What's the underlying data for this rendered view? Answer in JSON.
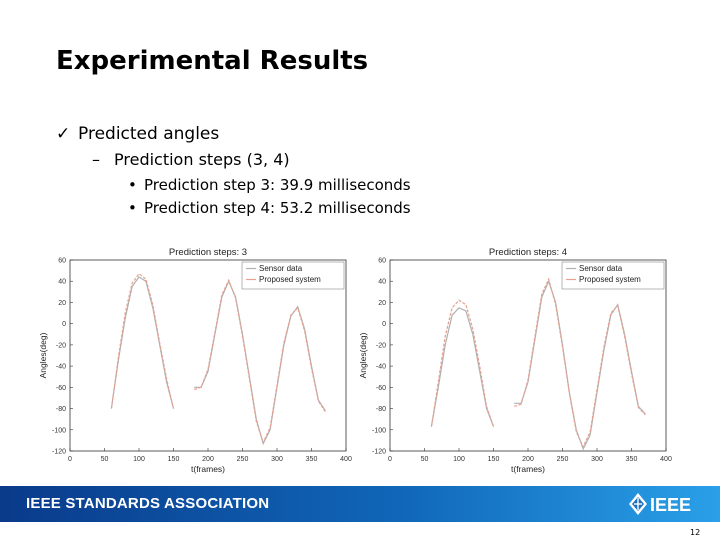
{
  "slide": {
    "title": "Experimental Results",
    "bullet1": {
      "mark": "✓",
      "text": "Predicted angles"
    },
    "bullet2": {
      "mark": "–",
      "text": "Prediction steps (3, 4)"
    },
    "bullet3": [
      {
        "mark": "•",
        "text": "Prediction step 3: 39.9 milliseconds"
      },
      {
        "mark": "•",
        "text": "Prediction step 4: 53.2 milliseconds"
      }
    ],
    "footer": {
      "text": "IEEE STANDARDS ASSOCIATION",
      "logo_text": "IEEE"
    },
    "page_number": "12"
  },
  "chart_data": [
    {
      "type": "line",
      "title": "Prediction steps: 3",
      "xlabel": "t(frames)",
      "ylabel": "Angles(deg)",
      "xlim": [
        0,
        400
      ],
      "ylim": [
        -120,
        60
      ],
      "xticks": [
        "0",
        "50",
        "100",
        "150",
        "200",
        "250",
        "300",
        "350",
        "400"
      ],
      "yticks": [
        "60",
        "40",
        "20",
        "0",
        "-20",
        "-40",
        "-60",
        "-80",
        "-100",
        "-120"
      ],
      "legend_position": "top-right",
      "series": [
        {
          "name": "Sensor data",
          "color": "#b0b0b0",
          "segments": [
            {
              "x": [
                60,
                70,
                80,
                90,
                100,
                110,
                120,
                130,
                140,
                150
              ],
              "y": [
                -80,
                -35,
                5,
                35,
                44,
                40,
                15,
                -20,
                -55,
                -80
              ]
            },
            {
              "x": [
                180,
                190,
                200,
                210,
                220,
                230,
                240,
                250,
                260,
                270,
                280,
                290,
                300,
                310,
                320,
                330,
                340,
                350,
                360,
                370
              ],
              "y": [
                -60,
                -60,
                -45,
                -10,
                25,
                40,
                25,
                -10,
                -50,
                -90,
                -113,
                -100,
                -60,
                -20,
                7,
                16,
                -5,
                -40,
                -72,
                -82
              ]
            }
          ]
        },
        {
          "name": "Proposed system",
          "color": "#e8a090",
          "segments": [
            {
              "x": [
                60,
                70,
                80,
                90,
                100,
                110,
                120,
                130,
                140,
                150
              ],
              "y": [
                -80,
                -32,
                10,
                38,
                47,
                42,
                18,
                -18,
                -52,
                -80
              ]
            },
            {
              "x": [
                180,
                190,
                200,
                210,
                220,
                230,
                240,
                250,
                260,
                270,
                280,
                290,
                300,
                310,
                320,
                330,
                340,
                350,
                360,
                370
              ],
              "y": [
                -62,
                -60,
                -43,
                -8,
                27,
                41,
                24,
                -12,
                -52,
                -92,
                -112,
                -98,
                -58,
                -18,
                8,
                15,
                -7,
                -42,
                -73,
                -83
              ]
            }
          ]
        }
      ]
    },
    {
      "type": "line",
      "title": "Prediction steps: 4",
      "xlabel": "t(frames)",
      "ylabel": "Angles(deg)",
      "xlim": [
        0,
        400
      ],
      "ylim": [
        -120,
        60
      ],
      "xticks": [
        "0",
        "50",
        "100",
        "150",
        "200",
        "250",
        "300",
        "350",
        "400"
      ],
      "yticks": [
        "60",
        "40",
        "20",
        "0",
        "-20",
        "-40",
        "-60",
        "-80",
        "-100",
        "-120"
      ],
      "legend_position": "top-right",
      "series": [
        {
          "name": "Sensor data",
          "color": "#b0b0b0",
          "segments": [
            {
              "x": [
                60,
                70,
                80,
                90,
                100,
                110,
                120,
                130,
                140,
                150
              ],
              "y": [
                -97,
                -60,
                -20,
                8,
                15,
                12,
                -10,
                -45,
                -80,
                -97
              ]
            },
            {
              "x": [
                180,
                190,
                200,
                210,
                220,
                230,
                240,
                250,
                260,
                270,
                280,
                290,
                300,
                310,
                320,
                330,
                340,
                350,
                360,
                370
              ],
              "y": [
                -75,
                -75,
                -55,
                -15,
                25,
                40,
                20,
                -20,
                -65,
                -100,
                -118,
                -105,
                -65,
                -25,
                8,
                18,
                -10,
                -45,
                -78,
                -85
              ]
            }
          ]
        },
        {
          "name": "Proposed system",
          "color": "#e8a090",
          "segments": [
            {
              "x": [
                60,
                70,
                80,
                90,
                100,
                110,
                120,
                130,
                140,
                150
              ],
              "y": [
                -97,
                -55,
                -12,
                15,
                22,
                18,
                -5,
                -40,
                -78,
                -97
              ]
            },
            {
              "x": [
                180,
                190,
                200,
                210,
                220,
                230,
                240,
                250,
                260,
                270,
                280,
                290,
                300,
                310,
                320,
                330,
                340,
                350,
                360,
                370
              ],
              "y": [
                -78,
                -76,
                -53,
                -12,
                28,
                42,
                18,
                -22,
                -66,
                -102,
                -116,
                -102,
                -62,
                -22,
                10,
                17,
                -12,
                -47,
                -79,
                -86
              ]
            }
          ]
        }
      ]
    }
  ]
}
